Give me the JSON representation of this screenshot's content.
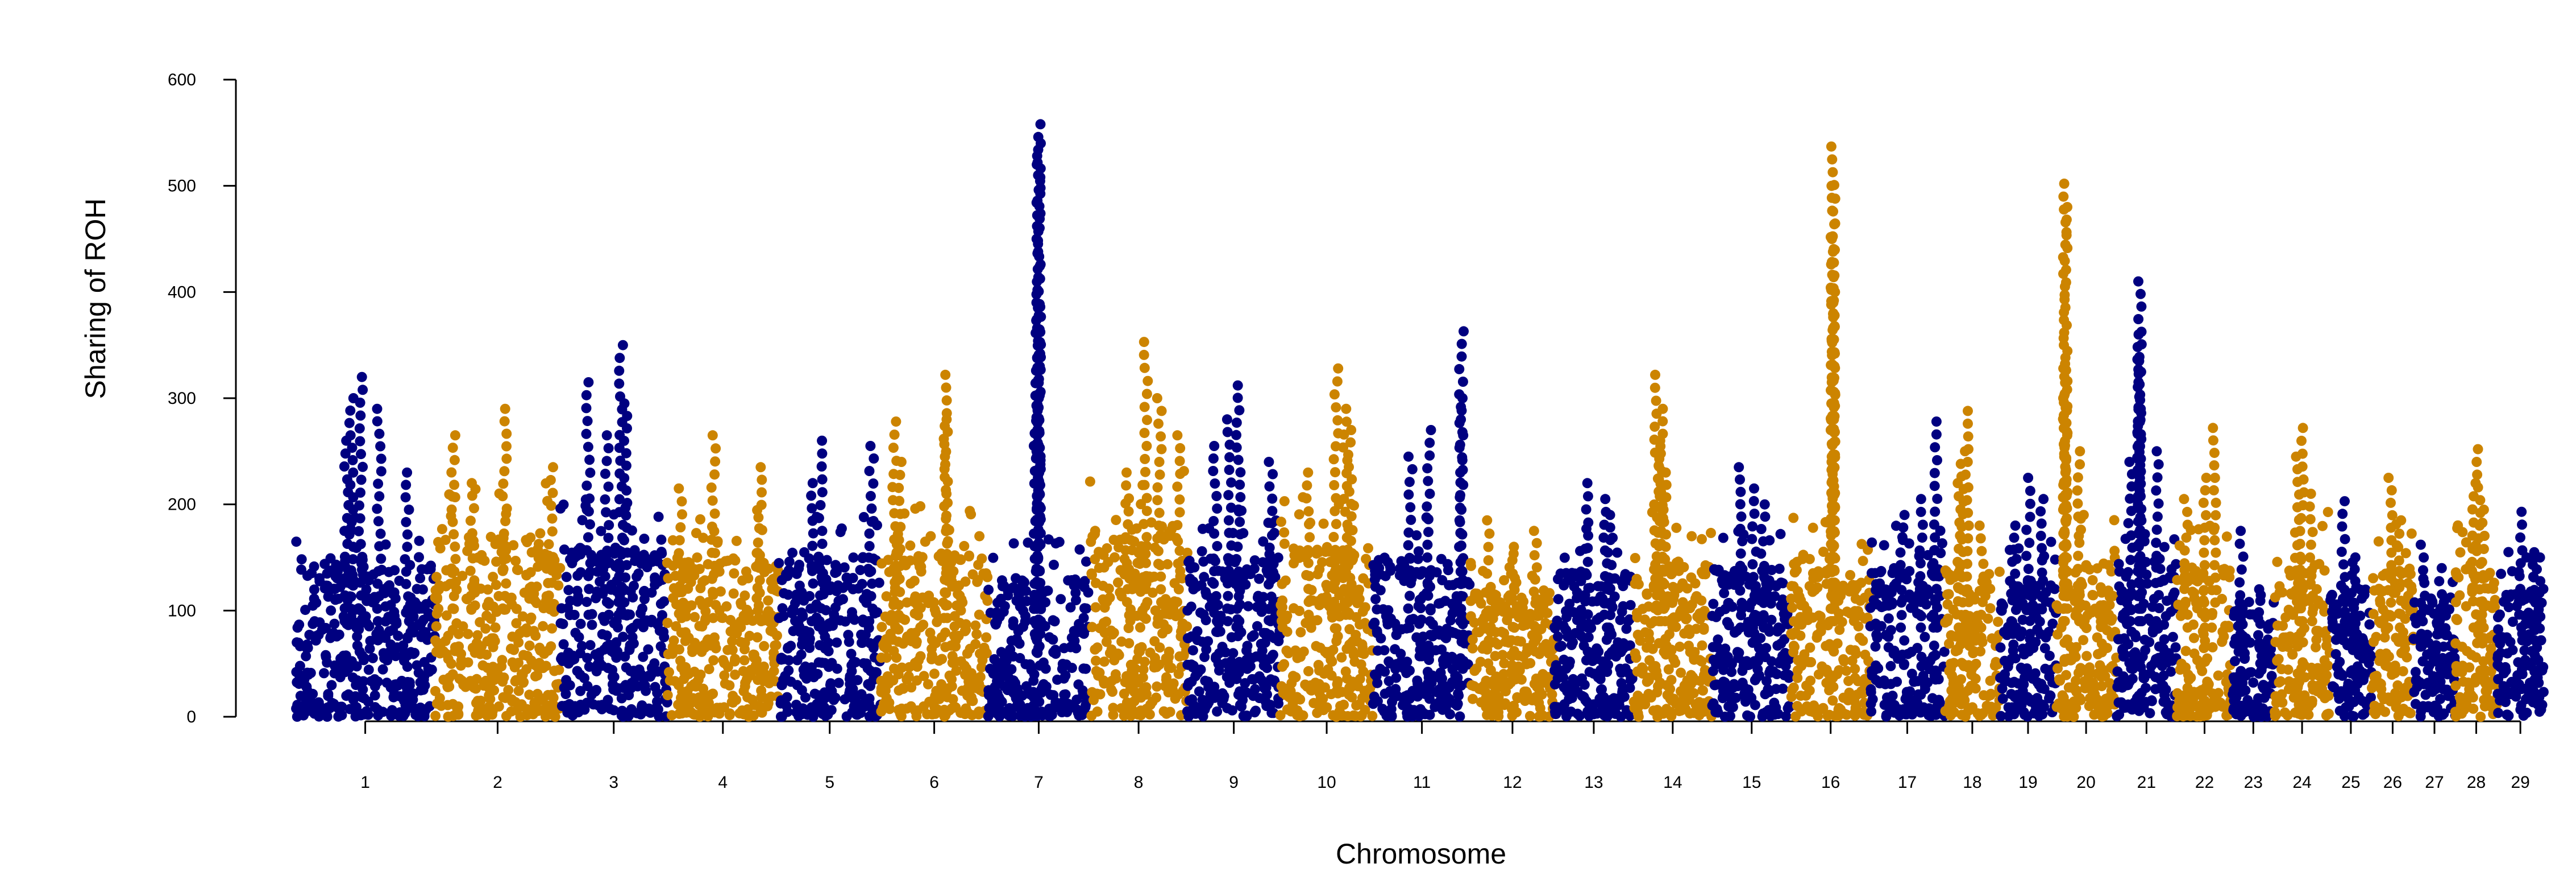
{
  "chart_data": {
    "type": "scatter",
    "subtype": "manhattan",
    "title": "",
    "xlabel": "Chromosome",
    "ylabel": "Sharing of ROH",
    "ylim": [
      0,
      600
    ],
    "yticks": [
      0,
      100,
      200,
      300,
      400,
      500,
      600
    ],
    "colors": {
      "odd": "#000080",
      "even": "#cc8400"
    },
    "point_spacing_note": "density approximated; representative points per chromosome",
    "chromosomes": [
      {
        "label": "1",
        "start": 0,
        "end": 150,
        "base_max": 150,
        "peaks": [
          [
            70,
            320
          ],
          [
            60,
            300
          ],
          [
            90,
            290
          ],
          [
            55,
            260
          ],
          [
            120,
            230
          ]
        ]
      },
      {
        "label": "2",
        "start": 150,
        "end": 285,
        "base_max": 170,
        "peaks": [
          [
            75,
            290
          ],
          [
            20,
            265
          ],
          [
            125,
            235
          ],
          [
            40,
            220
          ]
        ]
      },
      {
        "label": "3",
        "start": 285,
        "end": 400,
        "base_max": 160,
        "peaks": [
          [
            65,
            350
          ],
          [
            30,
            315
          ],
          [
            70,
            295
          ],
          [
            50,
            265
          ]
        ]
      },
      {
        "label": "4",
        "start": 400,
        "end": 520,
        "base_max": 155,
        "peaks": [
          [
            50,
            265
          ],
          [
            100,
            235
          ],
          [
            15,
            215
          ]
        ]
      },
      {
        "label": "5",
        "start": 520,
        "end": 630,
        "base_max": 150,
        "peaks": [
          [
            45,
            260
          ],
          [
            100,
            255
          ],
          [
            35,
            220
          ]
        ]
      },
      {
        "label": "6",
        "start": 630,
        "end": 745,
        "base_max": 155,
        "peaks": [
          [
            70,
            322
          ],
          [
            15,
            278
          ],
          [
            70,
            280
          ],
          [
            20,
            240
          ]
        ]
      },
      {
        "label": "7",
        "start": 745,
        "end": 855,
        "base_max": 130,
        "peaks": [
          [
            55,
            558
          ],
          [
            55,
            540
          ],
          [
            55,
            520
          ],
          [
            52,
            385
          ],
          [
            55,
            350
          ],
          [
            55,
            300
          ],
          [
            55,
            250
          ]
        ]
      },
      {
        "label": "8",
        "start": 855,
        "end": 960,
        "base_max": 180,
        "peaks": [
          [
            60,
            353
          ],
          [
            75,
            300
          ],
          [
            95,
            265
          ],
          [
            40,
            230
          ]
        ]
      },
      {
        "label": "9",
        "start": 960,
        "end": 1060,
        "base_max": 150,
        "peaks": [
          [
            55,
            312
          ],
          [
            45,
            280
          ],
          [
            90,
            240
          ],
          [
            30,
            255
          ]
        ]
      },
      {
        "label": "10",
        "start": 1060,
        "end": 1160,
        "base_max": 160,
        "peaks": [
          [
            60,
            328
          ],
          [
            70,
            290
          ],
          [
            75,
            270
          ],
          [
            30,
            230
          ]
        ]
      },
      {
        "label": "11",
        "start": 1160,
        "end": 1265,
        "base_max": 150,
        "peaks": [
          [
            95,
            363
          ],
          [
            95,
            300
          ],
          [
            60,
            270
          ],
          [
            40,
            245
          ]
        ]
      },
      {
        "label": "12",
        "start": 1265,
        "end": 1355,
        "base_max": 120,
        "peaks": [
          [
            20,
            185
          ],
          [
            70,
            175
          ],
          [
            45,
            160
          ]
        ]
      },
      {
        "label": "13",
        "start": 1355,
        "end": 1440,
        "base_max": 140,
        "peaks": [
          [
            35,
            220
          ],
          [
            55,
            205
          ],
          [
            60,
            190
          ]
        ]
      },
      {
        "label": "14",
        "start": 1440,
        "end": 1525,
        "base_max": 150,
        "peaks": [
          [
            25,
            322
          ],
          [
            30,
            290
          ],
          [
            30,
            260
          ],
          [
            35,
            230
          ]
        ]
      },
      {
        "label": "15",
        "start": 1525,
        "end": 1610,
        "base_max": 140,
        "peaks": [
          [
            30,
            235
          ],
          [
            45,
            215
          ],
          [
            55,
            200
          ]
        ]
      },
      {
        "label": "16",
        "start": 1610,
        "end": 1695,
        "base_max": 150,
        "peaks": [
          [
            45,
            537
          ],
          [
            45,
            500
          ],
          [
            45,
            450
          ],
          [
            45,
            400
          ],
          [
            45,
            315
          ],
          [
            45,
            280
          ],
          [
            45,
            240
          ]
        ]
      },
      {
        "label": "17",
        "start": 1695,
        "end": 1775,
        "base_max": 140,
        "peaks": [
          [
            70,
            278
          ],
          [
            55,
            205
          ],
          [
            35,
            190
          ]
        ]
      },
      {
        "label": "18",
        "start": 1775,
        "end": 1835,
        "base_max": 140,
        "peaks": [
          [
            25,
            288
          ],
          [
            20,
            250
          ],
          [
            15,
            220
          ],
          [
            40,
            180
          ]
        ]
      },
      {
        "label": "19",
        "start": 1835,
        "end": 1895,
        "base_max": 130,
        "peaks": [
          [
            30,
            225
          ],
          [
            45,
            205
          ],
          [
            15,
            180
          ]
        ]
      },
      {
        "label": "20",
        "start": 1895,
        "end": 1960,
        "base_max": 150,
        "peaks": [
          [
            10,
            502
          ],
          [
            10,
            480
          ],
          [
            10,
            328
          ],
          [
            10,
            300
          ],
          [
            25,
            250
          ]
        ]
      },
      {
        "label": "21",
        "start": 1960,
        "end": 2025,
        "base_max": 150,
        "peaks": [
          [
            25,
            410
          ],
          [
            25,
            360
          ],
          [
            25,
            335
          ],
          [
            25,
            290
          ],
          [
            45,
            250
          ],
          [
            15,
            240
          ]
        ]
      },
      {
        "label": "22",
        "start": 2025,
        "end": 2085,
        "base_max": 140,
        "peaks": [
          [
            40,
            272
          ],
          [
            30,
            225
          ],
          [
            10,
            205
          ]
        ]
      },
      {
        "label": "23",
        "start": 2085,
        "end": 2130,
        "base_max": 110,
        "peaks": [
          [
            10,
            175
          ],
          [
            30,
            120
          ]
        ]
      },
      {
        "label": "24",
        "start": 2130,
        "end": 2190,
        "base_max": 150,
        "peaks": [
          [
            30,
            272
          ],
          [
            25,
            245
          ],
          [
            40,
            210
          ]
        ]
      },
      {
        "label": "25",
        "start": 2190,
        "end": 2235,
        "base_max": 120,
        "peaks": [
          [
            15,
            203
          ],
          [
            25,
            150
          ]
        ]
      },
      {
        "label": "26",
        "start": 2235,
        "end": 2280,
        "base_max": 140,
        "peaks": [
          [
            20,
            225
          ],
          [
            30,
            185
          ]
        ]
      },
      {
        "label": "27",
        "start": 2280,
        "end": 2325,
        "base_max": 110,
        "peaks": [
          [
            10,
            162
          ],
          [
            30,
            140
          ]
        ]
      },
      {
        "label": "28",
        "start": 2325,
        "end": 2370,
        "base_max": 140,
        "peaks": [
          [
            25,
            252
          ],
          [
            20,
            220
          ],
          [
            30,
            195
          ]
        ]
      },
      {
        "label": "29",
        "start": 2370,
        "end": 2420,
        "base_max": 120,
        "peaks": [
          [
            25,
            193
          ],
          [
            40,
            155
          ],
          [
            45,
            150
          ]
        ]
      }
    ]
  }
}
